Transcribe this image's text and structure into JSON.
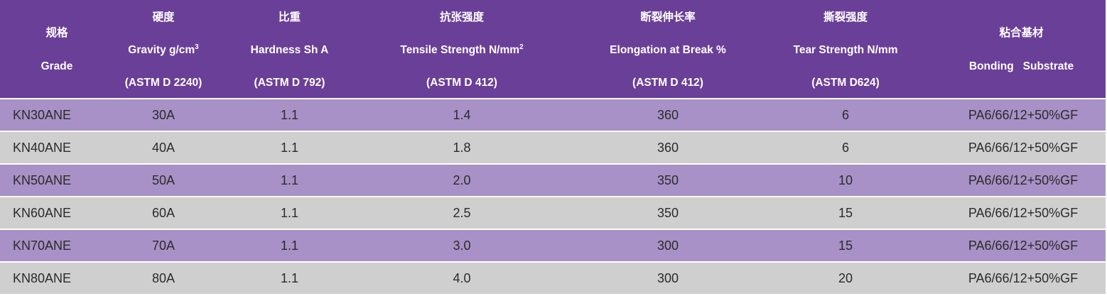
{
  "colors": {
    "header_bg": "#6a3f98",
    "row_purple": "#a891c6",
    "row_gray": "#cfcfcf",
    "header_text": "#ffffff"
  },
  "header": {
    "grade": {
      "cn": "规格",
      "en": "Grade"
    },
    "hardness": {
      "cn": "硬度",
      "en": "Gravity g/cm",
      "sup": "3",
      "std": "(ASTM D 2240)"
    },
    "gravity": {
      "cn": "比重",
      "en": "Hardness Sh A",
      "std": "(ASTM D 792)"
    },
    "tensile": {
      "cn": "抗张强度",
      "en": "Tensile Strength N/mm",
      "sup": "2",
      "std": "(ASTM D 412)"
    },
    "elongation": {
      "cn": "断裂伸长率",
      "en": "Elongation at Break %",
      "std": "(ASTM D 412)"
    },
    "tear": {
      "cn": "撕裂强度",
      "en": "Tear Strength N/mm",
      "std": "(ASTM D624)"
    },
    "substrate": {
      "cn": "粘合基材",
      "en": "Bonding   Substrate"
    }
  },
  "rows": [
    {
      "grade": "KN30ANE",
      "hardness": "30A",
      "gravity": "1.1",
      "tensile": "1.4",
      "elongation": "360",
      "tear": "6",
      "substrate": "PA6/66/12+50%GF"
    },
    {
      "grade": "KN40ANE",
      "hardness": "40A",
      "gravity": "1.1",
      "tensile": "1.8",
      "elongation": "360",
      "tear": "6",
      "substrate": "PA6/66/12+50%GF"
    },
    {
      "grade": "KN50ANE",
      "hardness": "50A",
      "gravity": "1.1",
      "tensile": "2.0",
      "elongation": "350",
      "tear": "10",
      "substrate": "PA6/66/12+50%GF"
    },
    {
      "grade": "KN60ANE",
      "hardness": "60A",
      "gravity": "1.1",
      "tensile": "2.5",
      "elongation": "350",
      "tear": "15",
      "substrate": "PA6/66/12+50%GF"
    },
    {
      "grade": "KN70ANE",
      "hardness": "70A",
      "gravity": "1.1",
      "tensile": "3.0",
      "elongation": "300",
      "tear": "15",
      "substrate": "PA6/66/12+50%GF"
    },
    {
      "grade": "KN80ANE",
      "hardness": "80A",
      "gravity": "1.1",
      "tensile": "4.0",
      "elongation": "300",
      "tear": "20",
      "substrate": "PA6/66/12+50%GF"
    }
  ]
}
